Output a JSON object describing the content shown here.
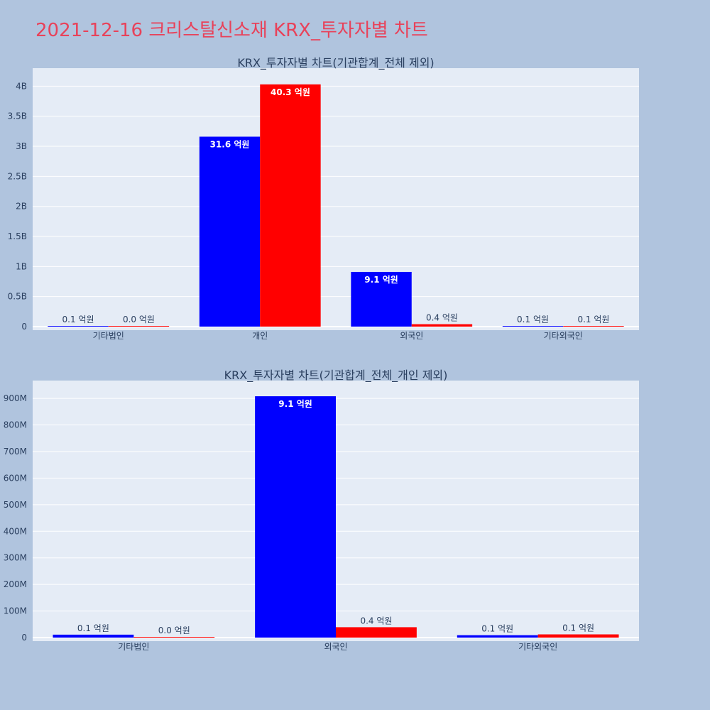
{
  "page_title": "2021-12-16 크리스탈신소재 KRX_투자자별 차트",
  "colors": {
    "background": "#b0c4de",
    "plot_bg": "#e5ecf6",
    "series_buy": "#0000ff",
    "series_sell": "#ff0000",
    "title": "#e8425a"
  },
  "chart_data": [
    {
      "type": "bar",
      "title": "KRX_투자자별 차트(기관합계_전체 제외)",
      "categories": [
        "기타법인",
        "개인",
        "외국인",
        "기타외국인"
      ],
      "ylim": [
        0,
        4.3
      ],
      "yticks": [
        0,
        0.5,
        1,
        1.5,
        2,
        2.5,
        3,
        3.5,
        4
      ],
      "ytick_labels": [
        "0",
        "0.5B",
        "1B",
        "1.5B",
        "2B",
        "2.5B",
        "3B",
        "3.5B",
        "4B"
      ],
      "grid": true,
      "series": [
        {
          "color": "#0000ff",
          "values": [
            0.01,
            3.16,
            0.91,
            0.01
          ],
          "labels": [
            "0.1 억원",
            "31.6 억원",
            "9.1 억원",
            "0.1 억원"
          ]
        },
        {
          "color": "#ff0000",
          "values": [
            0.001,
            4.03,
            0.04,
            0.01
          ],
          "labels": [
            "0.0 억원",
            "40.3 억원",
            "0.4 억원",
            "0.1 억원"
          ]
        }
      ]
    },
    {
      "type": "bar",
      "title": "KRX_투자자별 차트(기관합계_전체_개인 제외)",
      "categories": [
        "기타법인",
        "외국인",
        "기타외국인"
      ],
      "ylim": [
        0,
        967
      ],
      "yticks": [
        0,
        100,
        200,
        300,
        400,
        500,
        600,
        700,
        800,
        900
      ],
      "ytick_labels": [
        "0",
        "100M",
        "200M",
        "300M",
        "400M",
        "500M",
        "600M",
        "700M",
        "800M",
        "900M"
      ],
      "grid": true,
      "series": [
        {
          "color": "#0000ff",
          "values": [
            11,
            908,
            9
          ],
          "labels": [
            "0.1 억원",
            "9.1 억원",
            "0.1 억원"
          ]
        },
        {
          "color": "#ff0000",
          "values": [
            1,
            39,
            12
          ],
          "labels": [
            "0.0 억원",
            "0.4 억원",
            "0.1 억원"
          ]
        }
      ]
    }
  ]
}
